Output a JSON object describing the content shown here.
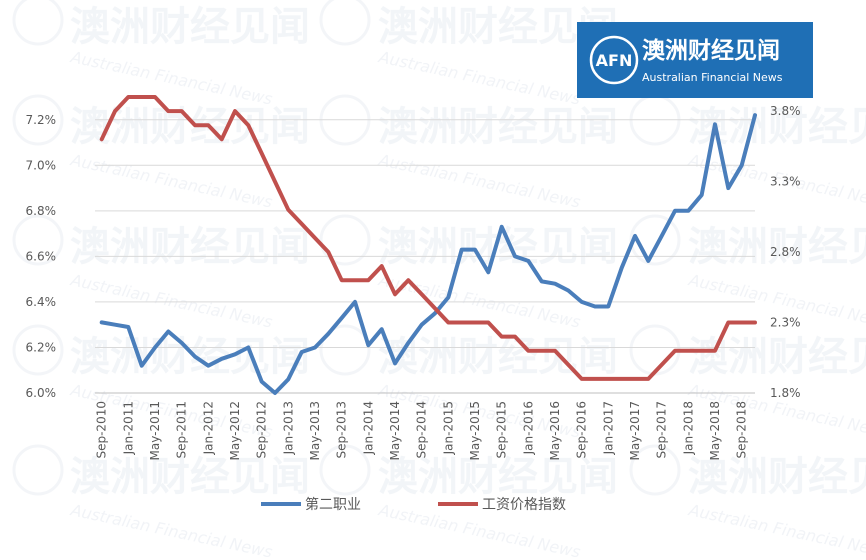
{
  "logo": {
    "mark": "AFN",
    "name_cn": "澳洲财经见闻",
    "name_en": "Australian Financial News",
    "bg_color": "#1f6fb5"
  },
  "chart_data": {
    "type": "line",
    "x": [
      "Sep-2010",
      "Nov-2010",
      "Jan-2011",
      "Mar-2011",
      "May-2011",
      "Jul-2011",
      "Sep-2011",
      "Nov-2011",
      "Jan-2012",
      "Mar-2012",
      "May-2012",
      "Jul-2012",
      "Sep-2012",
      "Nov-2012",
      "Jan-2013",
      "Mar-2013",
      "May-2013",
      "Jul-2013",
      "Sep-2013",
      "Nov-2013",
      "Jan-2014",
      "Mar-2014",
      "May-2014",
      "Jul-2014",
      "Sep-2014",
      "Nov-2014",
      "Jan-2015",
      "Mar-2015",
      "May-2015",
      "Jul-2015",
      "Sep-2015",
      "Nov-2015",
      "Jan-2016",
      "Mar-2016",
      "May-2016",
      "Jul-2016",
      "Sep-2016",
      "Nov-2016",
      "Jan-2017",
      "Mar-2017",
      "May-2017",
      "Jul-2017",
      "Sep-2017",
      "Nov-2017",
      "Jan-2018",
      "Mar-2018",
      "May-2018",
      "Jul-2018",
      "Sep-2018",
      "Nov-2018"
    ],
    "x_tick_labels": [
      "Sep-2010",
      "Jan-2011",
      "May-2011",
      "Sep-2011",
      "Jan-2012",
      "May-2012",
      "Sep-2012",
      "Jan-2013",
      "May-2013",
      "Sep-2013",
      "Jan-2014",
      "May-2014",
      "Sep-2014",
      "Jan-2015",
      "May-2015",
      "Sep-2015",
      "Jan-2016",
      "May-2016",
      "Sep-2016",
      "Jan-2017",
      "May-2017",
      "Sep-2017",
      "Jan-2018",
      "May-2018",
      "Sep-2018"
    ],
    "left_axis": {
      "ylim": [
        6.0,
        7.3
      ],
      "ticks": [
        "6.0%",
        "6.2%",
        "6.4%",
        "6.6%",
        "6.8%",
        "7.0%",
        "7.2%"
      ],
      "tick_values": [
        6.0,
        6.2,
        6.4,
        6.6,
        6.8,
        7.0,
        7.2
      ]
    },
    "right_axis": {
      "ylim": [
        1.8,
        3.9
      ],
      "ticks": [
        "1.8%",
        "2.3%",
        "2.8%",
        "3.3%",
        "3.8%"
      ],
      "tick_values": [
        1.8,
        2.3,
        2.8,
        3.3,
        3.8
      ]
    },
    "series": [
      {
        "name": "第二职业",
        "axis": "left",
        "color": "#4a7ebb",
        "values": [
          6.31,
          6.3,
          6.29,
          6.12,
          6.2,
          6.27,
          6.22,
          6.16,
          6.12,
          6.15,
          6.17,
          6.2,
          6.05,
          6.0,
          6.06,
          6.18,
          6.2,
          6.26,
          6.33,
          6.4,
          6.21,
          6.28,
          6.13,
          6.22,
          6.3,
          6.35,
          6.42,
          6.63,
          6.63,
          6.53,
          6.73,
          6.6,
          6.58,
          6.49,
          6.48,
          6.45,
          6.4,
          6.38,
          6.38,
          6.55,
          6.69,
          6.58,
          6.69,
          6.8,
          6.8,
          6.87,
          7.18,
          6.9,
          7.0,
          7.22
        ]
      },
      {
        "name": "工资价格指数",
        "axis": "right",
        "color": "#c0504d",
        "values": [
          3.6,
          3.8,
          3.9,
          3.9,
          3.9,
          3.8,
          3.8,
          3.7,
          3.7,
          3.6,
          3.8,
          3.7,
          3.5,
          3.3,
          3.1,
          3.0,
          2.9,
          2.8,
          2.6,
          2.6,
          2.6,
          2.7,
          2.5,
          2.6,
          2.5,
          2.4,
          2.3,
          2.3,
          2.3,
          2.3,
          2.2,
          2.2,
          2.1,
          2.1,
          2.1,
          2.0,
          1.9,
          1.9,
          1.9,
          1.9,
          1.9,
          1.9,
          2.0,
          2.1,
          2.1,
          2.1,
          2.1,
          2.3,
          2.3,
          2.3
        ]
      }
    ],
    "legend": "bottom",
    "grid": true
  }
}
